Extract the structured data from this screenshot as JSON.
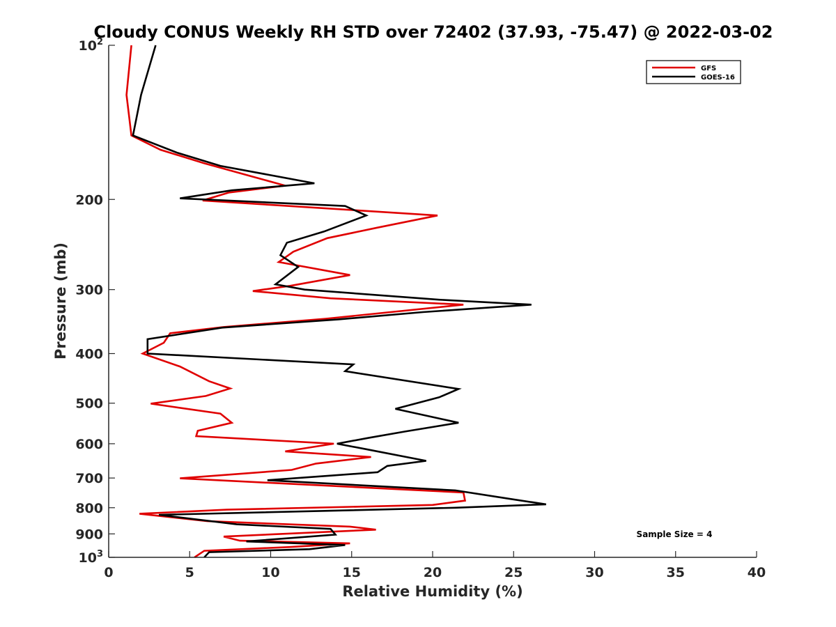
{
  "chart_data": {
    "type": "line",
    "title": "Cloudy CONUS Weekly RH STD over 72402 (37.93, -75.47) @ 2022-03-02",
    "xlabel": "Relative Humidity (%)",
    "ylabel": "Pressure (mb)",
    "xlim": [
      0,
      40
    ],
    "ylim": [
      100,
      1000
    ],
    "y_scale": "log",
    "y_reversed": true,
    "grid": false,
    "legend_position": "top-right",
    "x_ticks": [
      {
        "value": 0,
        "label": "0"
      },
      {
        "value": 5,
        "label": "5"
      },
      {
        "value": 10,
        "label": "10"
      },
      {
        "value": 15,
        "label": "15"
      },
      {
        "value": 20,
        "label": "20"
      },
      {
        "value": 25,
        "label": "25"
      },
      {
        "value": 30,
        "label": "30"
      },
      {
        "value": 35,
        "label": "35"
      },
      {
        "value": 40,
        "label": "40"
      }
    ],
    "y_ticks": [
      {
        "value": 100,
        "base": "10",
        "exp": "2"
      },
      {
        "value": 200,
        "label": "200"
      },
      {
        "value": 300,
        "label": "300"
      },
      {
        "value": 400,
        "label": "400"
      },
      {
        "value": 500,
        "label": "500"
      },
      {
        "value": 600,
        "label": "600"
      },
      {
        "value": 700,
        "label": "700"
      },
      {
        "value": 800,
        "label": "800"
      },
      {
        "value": 900,
        "label": "900"
      },
      {
        "value": 1000,
        "base": "10",
        "exp": "3"
      }
    ],
    "series": [
      {
        "name": "GFS",
        "color": "#e00000",
        "points": [
          [
            1.4,
            100
          ],
          [
            1.1,
            125
          ],
          [
            1.4,
            150
          ],
          [
            3.2,
            160
          ],
          [
            5.9,
            170
          ],
          [
            10.9,
            188
          ],
          [
            7.4,
            194
          ],
          [
            5.8,
            201
          ],
          [
            20.3,
            215
          ],
          [
            16.6,
            227
          ],
          [
            13.5,
            238
          ],
          [
            11.4,
            253
          ],
          [
            10.5,
            265
          ],
          [
            14.9,
            281
          ],
          [
            11.2,
            295
          ],
          [
            8.9,
            302
          ],
          [
            13.7,
            312
          ],
          [
            21.9,
            321
          ],
          [
            13.4,
            342
          ],
          [
            7.1,
            355
          ],
          [
            3.8,
            365
          ],
          [
            3.4,
            381
          ],
          [
            2.1,
            400
          ],
          [
            4.4,
            424
          ],
          [
            6.2,
            453
          ],
          [
            7.5,
            468
          ],
          [
            6.0,
            484
          ],
          [
            2.6,
            501
          ],
          [
            6.9,
            524
          ],
          [
            7.6,
            546
          ],
          [
            5.5,
            566
          ],
          [
            5.4,
            580
          ],
          [
            13.9,
            600
          ],
          [
            10.9,
            621
          ],
          [
            16.2,
            637
          ],
          [
            12.8,
            656
          ],
          [
            11.3,
            675
          ],
          [
            4.4,
            701
          ],
          [
            21.9,
            747
          ],
          [
            22.0,
            775
          ],
          [
            20.0,
            790
          ],
          [
            7.3,
            807
          ],
          [
            1.9,
            822
          ],
          [
            6.1,
            850
          ],
          [
            14.9,
            871
          ],
          [
            16.5,
            883
          ],
          [
            7.1,
            911
          ],
          [
            8.1,
            928
          ],
          [
            14.9,
            939
          ],
          [
            11.1,
            955
          ],
          [
            5.9,
            971
          ],
          [
            5.3,
            1000
          ]
        ]
      },
      {
        "name": "GOES-16",
        "color": "#000000",
        "points": [
          [
            2.9,
            100
          ],
          [
            2.0,
            125
          ],
          [
            1.5,
            150
          ],
          [
            4.2,
            162
          ],
          [
            6.9,
            172
          ],
          [
            12.7,
            186
          ],
          [
            7.6,
            192
          ],
          [
            4.4,
            199
          ],
          [
            14.6,
            206
          ],
          [
            15.9,
            215
          ],
          [
            13.3,
            231
          ],
          [
            11.0,
            243
          ],
          [
            10.6,
            257
          ],
          [
            11.7,
            271
          ],
          [
            10.3,
            293
          ],
          [
            12.1,
            300
          ],
          [
            20.4,
            314
          ],
          [
            26.1,
            321
          ],
          [
            19.4,
            332
          ],
          [
            14.2,
            343
          ],
          [
            7.0,
            356
          ],
          [
            2.4,
            375
          ],
          [
            2.4,
            400
          ],
          [
            15.1,
            420
          ],
          [
            14.6,
            433
          ],
          [
            21.6,
            469
          ],
          [
            20.4,
            487
          ],
          [
            17.7,
            513
          ],
          [
            21.6,
            546
          ],
          [
            18.3,
            568
          ],
          [
            16.1,
            584
          ],
          [
            14.1,
            600
          ],
          [
            15.9,
            615
          ],
          [
            19.6,
            648
          ],
          [
            17.2,
            663
          ],
          [
            16.6,
            682
          ],
          [
            9.8,
            707
          ],
          [
            21.4,
            740
          ],
          [
            24.8,
            769
          ],
          [
            27.0,
            788
          ],
          [
            21.4,
            800
          ],
          [
            3.1,
            826
          ],
          [
            7.9,
            862
          ],
          [
            13.7,
            880
          ],
          [
            14.0,
            903
          ],
          [
            8.5,
            931
          ],
          [
            14.6,
            946
          ],
          [
            12.4,
            964
          ],
          [
            6.2,
            977
          ],
          [
            5.9,
            1000
          ]
        ]
      }
    ],
    "annotations": [
      {
        "text": "Sample Size = 4"
      }
    ]
  }
}
